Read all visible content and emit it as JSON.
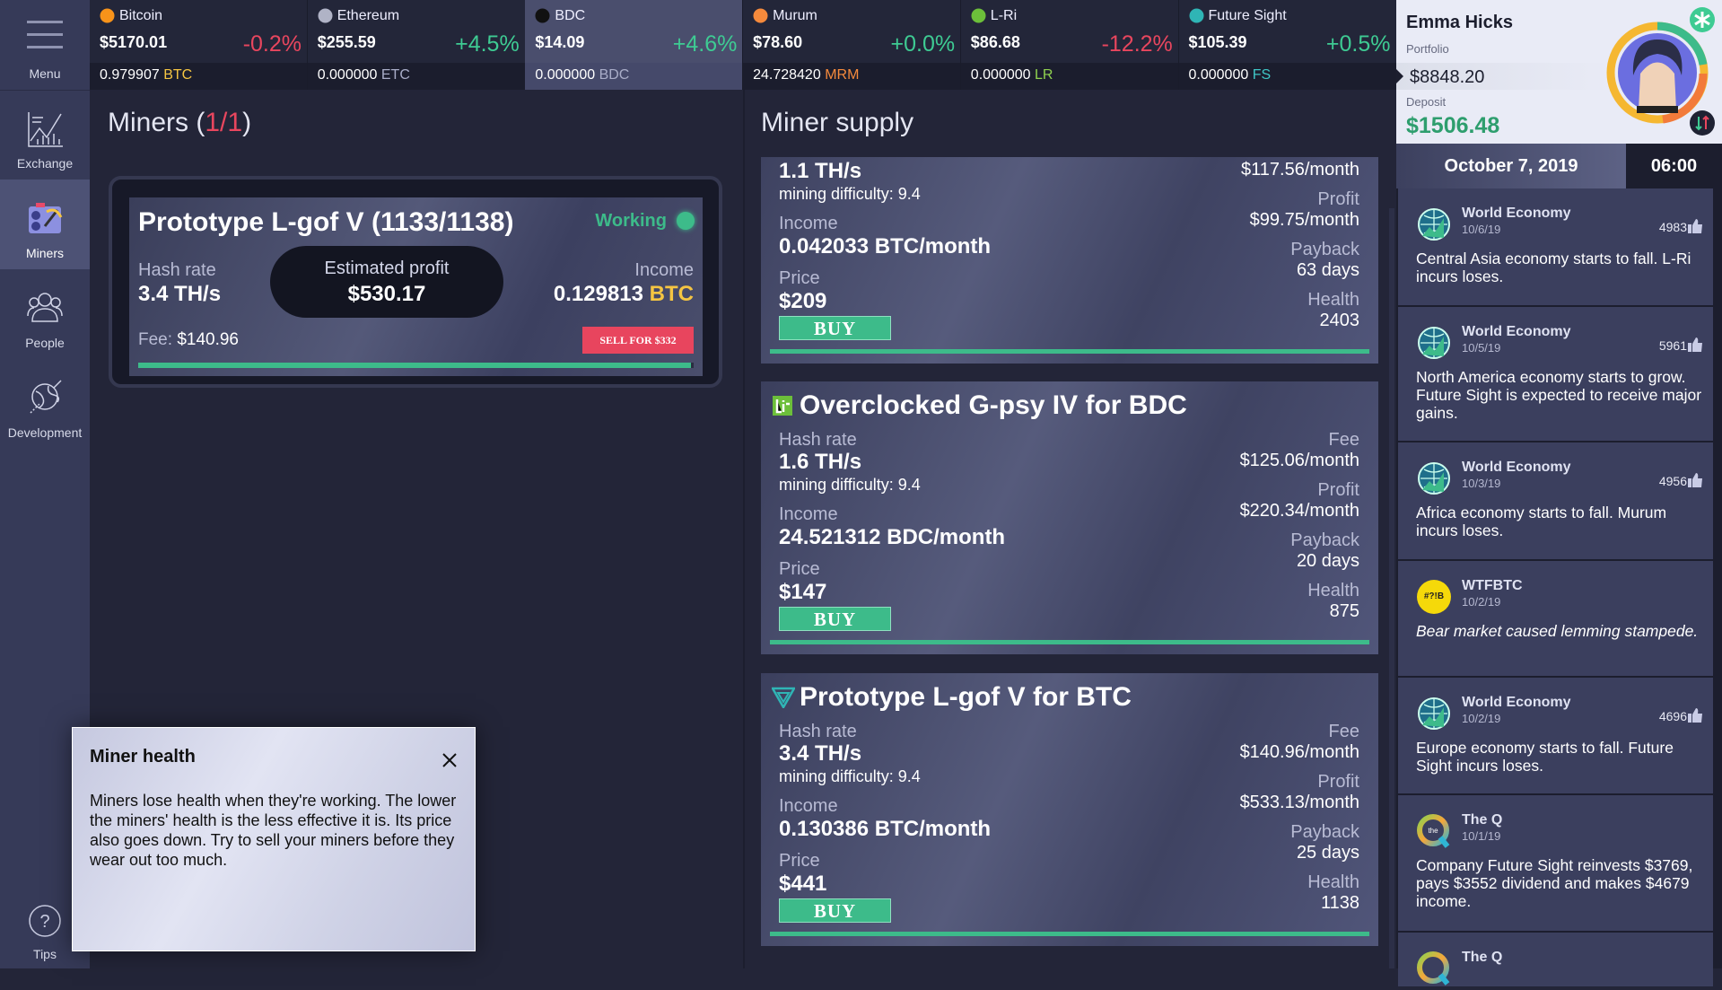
{
  "sidebar": {
    "menu": "Menu",
    "items": [
      {
        "label": "Exchange",
        "icon": "exchange-chart-icon"
      },
      {
        "label": "Miners",
        "icon": "miner-pickaxe-icon",
        "active": true
      },
      {
        "label": "People",
        "icon": "people-group-icon"
      },
      {
        "label": "Development",
        "icon": "globe-rocket-icon"
      }
    ],
    "tips": "Tips"
  },
  "tickers": [
    {
      "name": "Bitcoin",
      "price": "$5170.01",
      "change": "-0.2%",
      "dir": "down",
      "amount": "0.979907",
      "symbol": "BTC",
      "symbol_color": "#f5c542",
      "icon_color": "#f7931a"
    },
    {
      "name": "Ethereum",
      "price": "$255.59",
      "change": "+4.5%",
      "dir": "up",
      "amount": "0.000000",
      "symbol": "ETC",
      "symbol_color": "#a9adc8",
      "icon_color": "#b0b3c6"
    },
    {
      "name": "BDC",
      "price": "$14.09",
      "change": "+4.6%",
      "dir": "up",
      "amount": "0.000000",
      "symbol": "BDC",
      "symbol_color": "#a9adc8",
      "icon_color": "#111",
      "selected": true
    },
    {
      "name": "Murum",
      "price": "$78.60",
      "change": "+0.0%",
      "dir": "up",
      "amount": "24.728420",
      "symbol": "MRM",
      "symbol_color": "#f58a3c",
      "icon_color": "#f58a3c"
    },
    {
      "name": "L-Ri",
      "price": "$86.68",
      "change": "-12.2%",
      "dir": "down",
      "amount": "0.000000",
      "symbol": "LR",
      "symbol_color": "#8fd14f",
      "icon_color": "#6cbf3a"
    },
    {
      "name": "Future Sight",
      "price": "$105.39",
      "change": "+0.5%",
      "dir": "up",
      "amount": "0.000000",
      "symbol": "FS",
      "symbol_color": "#3fc6c6",
      "icon_color": "#2fb5b5"
    }
  ],
  "miners": {
    "title": "Miners",
    "count": "1/1",
    "owned": {
      "name": "Prototype L-gof V (1133/1138)",
      "status": "Working",
      "hash_label": "Hash rate",
      "hash": "3.4 TH/s",
      "profit_label": "Estimated profit",
      "profit": "$530.17",
      "income_label": "Income",
      "income": "0.129813",
      "income_symbol": "BTC",
      "fee_label": "Fee:",
      "fee": "$140.96",
      "sell": "SELL FOR $332",
      "health_fraction": 0.9956
    }
  },
  "supply": {
    "title": "Miner supply",
    "cards": [
      {
        "title": "",
        "hash_label": "",
        "hash": "1.1 TH/s",
        "difficulty": "mining difficulty: 9.4",
        "income_label": "Income",
        "income": "0.042033 BTC/month",
        "price_label": "Price",
        "price": "$209",
        "buy": "BUY",
        "fee_label": "",
        "fee": "$117.56/month",
        "profit_label": "Profit",
        "profit": "$99.75/month",
        "payback_label": "Payback",
        "payback": "63 days",
        "health_label": "Health",
        "health": "2403"
      },
      {
        "title": "Overclocked G-psy IV for BDC",
        "icon": "l-ri-logo-icon",
        "hash_label": "Hash rate",
        "hash": "1.6 TH/s",
        "difficulty": "mining difficulty: 9.4",
        "income_label": "Income",
        "income": "24.521312 BDC/month",
        "price_label": "Price",
        "price": "$147",
        "buy": "BUY",
        "fee_label": "Fee",
        "fee": "$125.06/month",
        "profit_label": "Profit",
        "profit": "$220.34/month",
        "payback_label": "Payback",
        "payback": "20 days",
        "health_label": "Health",
        "health": "875"
      },
      {
        "title": "Prototype L-gof V for BTC",
        "icon": "future-sight-logo-icon",
        "hash_label": "Hash rate",
        "hash": "3.4 TH/s",
        "difficulty": "mining difficulty: 9.4",
        "income_label": "Income",
        "income": "0.130386 BTC/month",
        "price_label": "Price",
        "price": "$441",
        "buy": "BUY",
        "fee_label": "Fee",
        "fee": "$140.96/month",
        "profit_label": "Profit",
        "profit": "$533.13/month",
        "payback_label": "Payback",
        "payback": "25 days",
        "health_label": "Health",
        "health": "1138"
      }
    ]
  },
  "profile": {
    "name": "Emma Hicks",
    "portfolio_label": "Portfolio",
    "portfolio": "$8848.20",
    "deposit_label": "Deposit",
    "deposit": "$1506.48",
    "date": "October 7, 2019",
    "time": "06:00"
  },
  "news": [
    {
      "source": "World Economy",
      "date": "10/6/19",
      "likes": "4983",
      "text": "Central Asia economy starts to fall. L-Ri incurs loses.",
      "icon": "globe"
    },
    {
      "source": "World Economy",
      "date": "10/5/19",
      "likes": "5961",
      "text": "North America economy starts to grow. Future Sight is expected to receive major gains.",
      "icon": "globe"
    },
    {
      "source": "World Economy",
      "date": "10/3/19",
      "likes": "4956",
      "text": "Africa economy starts to fall. Murum incurs loses.",
      "icon": "globe"
    },
    {
      "source": "WTFBTC",
      "date": "10/2/19",
      "text": "Bear market caused lemming stampede.",
      "icon": "wtf",
      "icon_text": "#?!B",
      "italic": true
    },
    {
      "source": "World Economy",
      "date": "10/2/19",
      "likes": "4696",
      "text": "Europe economy starts to fall. Future Sight incurs loses.",
      "icon": "globe"
    },
    {
      "source": "The Q",
      "date": "10/1/19",
      "text": "Company Future Sight reinvests $3769, pays $3552 dividend and makes $4679 income.",
      "icon": "q",
      "icon_text": "the"
    },
    {
      "source": "The Q",
      "icon": "q"
    }
  ],
  "tooltip": {
    "title": "Miner health",
    "body": "Miners lose health when they're working. The lower the miners' health is the less effective it is. Its price also goes down. Try to sell your miners before they wear out too much."
  },
  "colors": {
    "accent_green": "#3dbb8a",
    "sell_red": "#e8455e",
    "loss_red": "#e8465e",
    "gain_green": "#3ecb93",
    "btc_yellow": "#f5c542"
  }
}
